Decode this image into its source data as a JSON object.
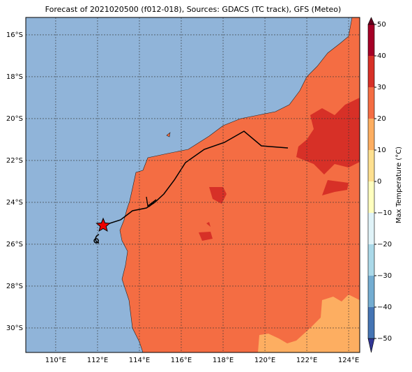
{
  "chart_data": {
    "type": "map",
    "title": "Forecast of 2021020500 (f012-018), Sources: GDACS (TC track), GFS (Meteo)",
    "xlim": [
      108.57,
      124.53
    ],
    "ylim": [
      -31.17,
      -15.17
    ],
    "xticks": [
      {
        "value": 110,
        "label": "110°E"
      },
      {
        "value": 112,
        "label": "112°E"
      },
      {
        "value": 114,
        "label": "114°E"
      },
      {
        "value": 116,
        "label": "116°E"
      },
      {
        "value": 118,
        "label": "118°E"
      },
      {
        "value": 120,
        "label": "120°E"
      },
      {
        "value": 122,
        "label": "122°E"
      },
      {
        "value": 124,
        "label": "124°E"
      }
    ],
    "yticks": [
      {
        "value": -16,
        "label": "16°S"
      },
      {
        "value": -18,
        "label": "18°S"
      },
      {
        "value": -20,
        "label": "20°S"
      },
      {
        "value": -22,
        "label": "22°S"
      },
      {
        "value": -24,
        "label": "24°S"
      },
      {
        "value": -26,
        "label": "26°S"
      },
      {
        "value": -28,
        "label": "28°S"
      },
      {
        "value": -30,
        "label": "30°S"
      }
    ],
    "grid": true,
    "colorbar": {
      "label": "Max Temperature (°C)",
      "lim": [
        -50,
        50
      ],
      "ticks": [
        {
          "value": -50,
          "label": "−50"
        },
        {
          "value": -40,
          "label": "−40"
        },
        {
          "value": -30,
          "label": "−30"
        },
        {
          "value": -20,
          "label": "−20"
        },
        {
          "value": -10,
          "label": "−10"
        },
        0,
        10,
        20,
        30,
        40,
        50
      ],
      "colors": [
        "#313695",
        "#4575b4",
        "#74add1",
        "#abd9e9",
        "#e0f3f8",
        "#ffffbf",
        "#fee090",
        "#fdae61",
        "#f46d43",
        "#d73027",
        "#a50026",
        "#67001f"
      ]
    }
  }
}
